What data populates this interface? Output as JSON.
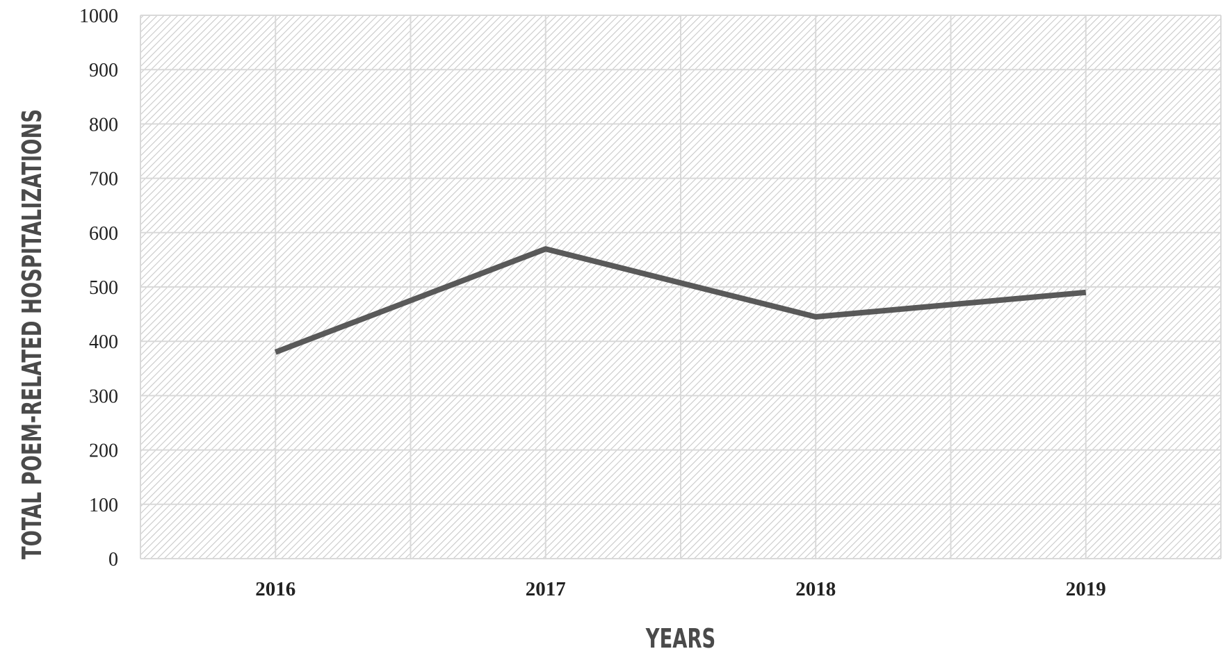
{
  "chart_data": {
    "type": "line",
    "title": "",
    "xlabel": "YEARS",
    "ylabel": "TOTAL POEM-RELATED HOSPITALIZATIONS",
    "categories": [
      "2016",
      "2017",
      "2018",
      "2019"
    ],
    "series": [
      {
        "values": [
          380,
          570,
          445,
          490
        ]
      }
    ],
    "ylim": [
      0,
      1000
    ],
    "yticks": [
      0,
      100,
      200,
      300,
      400,
      500,
      600,
      700,
      800,
      900,
      1000
    ],
    "grid": true,
    "legend": "none",
    "colors": {
      "line": "#595959",
      "grid": "#d9d9d9",
      "hatch": "#c9c9c9"
    }
  }
}
